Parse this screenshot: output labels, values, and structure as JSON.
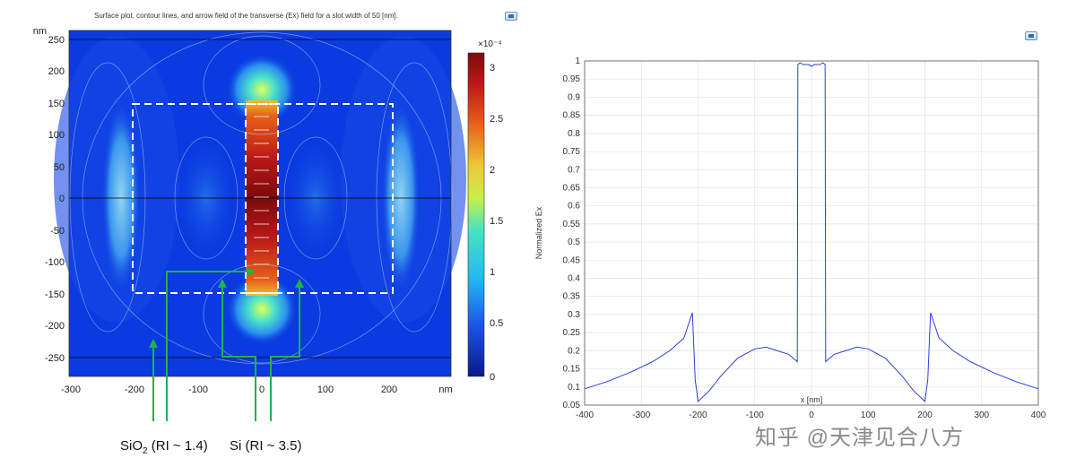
{
  "left_plot": {
    "title": "Surface plot, contour lines, and arrow field of the transverse (Ex) field for a slot width of 50 [nm].",
    "y_unit": "nm",
    "x_unit": "nm",
    "x_ticks": [
      "-300",
      "-200",
      "-100",
      "0",
      "100",
      "200"
    ],
    "y_ticks": [
      "250",
      "200",
      "150",
      "100",
      "50",
      "0",
      "-50",
      "-100",
      "-150",
      "-200",
      "-250"
    ],
    "colorbar_exponent": "×10⁻⁴",
    "colorbar_ticks": [
      "3",
      "2.5",
      "2",
      "1.5",
      "1",
      "0.5",
      "0"
    ],
    "sio2_label_main": "SiO",
    "sio2_label_sub": "2",
    "sio2_label_rest": " (RI ~ 1.4)",
    "si_label": "Si (RI ~ 3.5)"
  },
  "chart_data": {
    "type": "line",
    "title": "",
    "xlabel": "x [nm]",
    "ylabel": "Normalized Ex",
    "xlim": [
      -400,
      400
    ],
    "ylim": [
      0.05,
      1.0
    ],
    "x_ticks": [
      "-400",
      "-300",
      "-200",
      "-100",
      "0",
      "100",
      "200",
      "300",
      "400"
    ],
    "y_ticks": [
      "0.05",
      "0.1",
      "0.15",
      "0.2",
      "0.25",
      "0.3",
      "0.35",
      "0.4",
      "0.45",
      "0.5",
      "0.55",
      "0.6",
      "0.65",
      "0.7",
      "0.75",
      "0.8",
      "0.85",
      "0.9",
      "0.95",
      "1"
    ],
    "series": [
      {
        "x": [
          -400,
          -360,
          -320,
          -280,
          -250,
          -225,
          -210,
          -205,
          -200,
          -180,
          -160,
          -130,
          -100,
          -80,
          -60,
          -40,
          -25,
          -24,
          -20,
          -15,
          -10,
          -5,
          0,
          5,
          10,
          15,
          20,
          24,
          25,
          40,
          60,
          80,
          100,
          130,
          160,
          180,
          200,
          205,
          210,
          225,
          250,
          280,
          320,
          360,
          400
        ],
        "y": [
          0.095,
          0.115,
          0.14,
          0.17,
          0.2,
          0.235,
          0.305,
          0.12,
          0.06,
          0.09,
          0.13,
          0.18,
          0.205,
          0.21,
          0.2,
          0.19,
          0.17,
          0.99,
          0.995,
          0.99,
          0.99,
          0.99,
          0.985,
          0.99,
          0.99,
          0.99,
          0.995,
          0.99,
          0.17,
          0.19,
          0.2,
          0.21,
          0.205,
          0.18,
          0.13,
          0.09,
          0.06,
          0.12,
          0.305,
          0.235,
          0.2,
          0.17,
          0.14,
          0.115,
          0.095
        ],
        "color": "#2b3fd9"
      }
    ]
  },
  "watermark": "知乎 @天津见合八方",
  "colors": {
    "field_background": "#0a3ae0",
    "line": "#2b3fd9",
    "arrow_line": "#1fb34a",
    "dashed_outline": "#ffffff"
  },
  "icons": [
    "export-icon-left",
    "export-icon-right"
  ]
}
